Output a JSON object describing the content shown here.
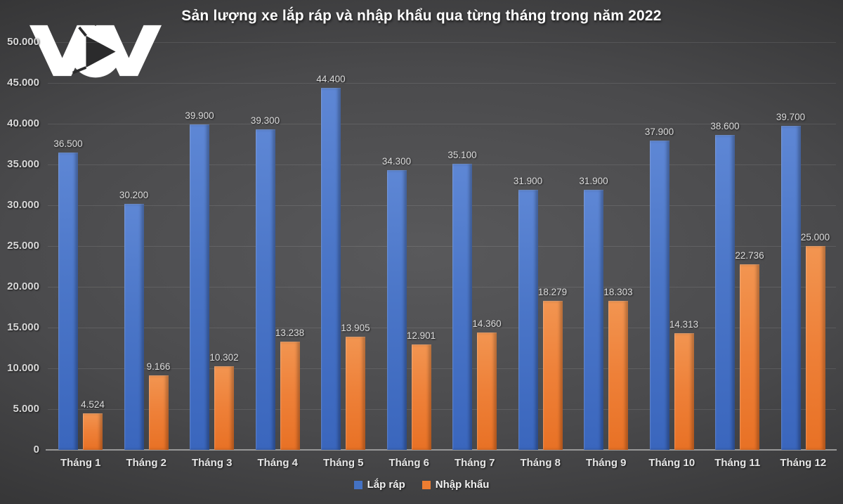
{
  "header": {
    "title": "Sản lượng xe lắp ráp và nhập khẩu qua từng tháng trong năm 2022",
    "logo_name": "VOV"
  },
  "colors": {
    "assembled_blue": "#4472c4",
    "imported_orange": "#ed7d31",
    "background_dark": "#2b2b2c",
    "text_light": "#e6e6e6"
  },
  "chart_data": {
    "type": "bar",
    "title": "Sản lượng xe lắp ráp và nhập khẩu qua từng tháng trong năm 2022",
    "categories": [
      "Tháng 1",
      "Tháng 2",
      "Tháng 3",
      "Tháng 4",
      "Tháng 5",
      "Tháng 6",
      "Tháng 7",
      "Tháng 8",
      "Tháng 9",
      "Tháng 10",
      "Tháng 11",
      "Tháng 12"
    ],
    "series": [
      {
        "name": "Lắp ráp",
        "color": "#4472c4",
        "values": [
          36500,
          30200,
          39900,
          39300,
          44400,
          34300,
          35100,
          31900,
          31900,
          37900,
          38600,
          39700
        ],
        "labels": [
          "36.500",
          "30.200",
          "39.900",
          "39.300",
          "44.400",
          "34.300",
          "35.100",
          "31.900",
          "31.900",
          "37.900",
          "38.600",
          "39.700"
        ]
      },
      {
        "name": "Nhập khẩu",
        "color": "#ed7d31",
        "values": [
          4524,
          9166,
          10302,
          13238,
          13905,
          12901,
          14360,
          18279,
          18303,
          14313,
          22736,
          25000
        ],
        "labels": [
          "4.524",
          "9.166",
          "10.302",
          "13.238",
          "13.905",
          "12.901",
          "14.360",
          "18.279",
          "18.303",
          "14.313",
          "22.736",
          "25.000"
        ]
      }
    ],
    "ylim": [
      0,
      50000
    ],
    "ytick_step": 5000,
    "yticks": [
      "50.000",
      "45.000",
      "40.000",
      "35.000",
      "30.000",
      "25.000",
      "20.000",
      "15.000",
      "10.000",
      "5.000",
      "0"
    ],
    "grid": true,
    "legend_position": "bottom"
  }
}
